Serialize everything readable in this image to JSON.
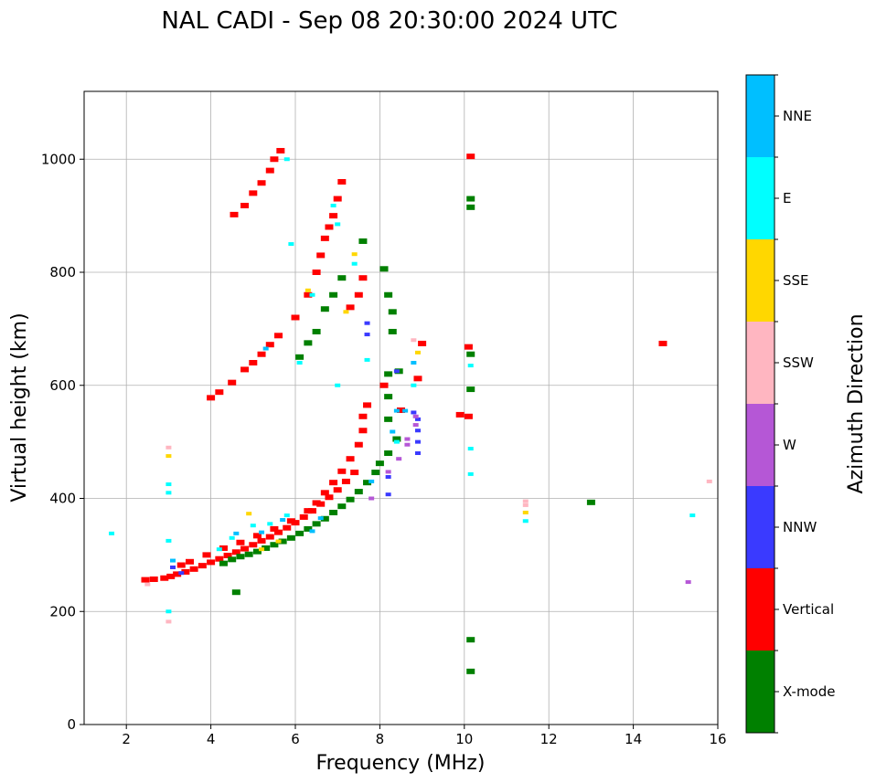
{
  "chart_data": {
    "type": "scatter",
    "title": "NAL CADI - Sep 08 20:30:00 2024 UTC",
    "xlabel": "Frequency (MHz)",
    "ylabel": "Virtual height (km)",
    "xlim": [
      1,
      16
    ],
    "ylim": [
      0,
      1120
    ],
    "xticks": [
      2,
      4,
      6,
      8,
      10,
      12,
      14,
      16
    ],
    "yticks": [
      0,
      200,
      400,
      600,
      800,
      1000
    ],
    "grid": true,
    "colorbar": {
      "label": "Azimuth Direction",
      "categories": [
        {
          "name": "X-mode",
          "color": "#008000"
        },
        {
          "name": "Vertical",
          "color": "#ff0000"
        },
        {
          "name": "NNW",
          "color": "#3a3aff"
        },
        {
          "name": "W",
          "color": "#b557d6"
        },
        {
          "name": "SSW",
          "color": "#ffb6c1"
        },
        {
          "name": "SSE",
          "color": "#ffd700"
        },
        {
          "name": "E",
          "color": "#00ffff"
        },
        {
          "name": "NNE",
          "color": "#00bfff"
        }
      ]
    },
    "series": [
      {
        "name": "Vertical",
        "points": [
          [
            2.45,
            256
          ],
          [
            2.65,
            257
          ],
          [
            2.9,
            259
          ],
          [
            3.05,
            262
          ],
          [
            3.2,
            266
          ],
          [
            3.4,
            270
          ],
          [
            3.6,
            275
          ],
          [
            3.8,
            281
          ],
          [
            4.0,
            287
          ],
          [
            4.2,
            293
          ],
          [
            4.4,
            299
          ],
          [
            4.6,
            305
          ],
          [
            4.8,
            311
          ],
          [
            5.0,
            318
          ],
          [
            5.2,
            325
          ],
          [
            5.4,
            332
          ],
          [
            5.6,
            340
          ],
          [
            5.8,
            348
          ],
          [
            6.0,
            357
          ],
          [
            6.2,
            367
          ],
          [
            6.4,
            378
          ],
          [
            6.6,
            390
          ],
          [
            6.8,
            402
          ],
          [
            7.0,
            415
          ],
          [
            7.2,
            430
          ],
          [
            7.4,
            446
          ],
          [
            3.3,
            282
          ],
          [
            3.5,
            288
          ],
          [
            3.9,
            300
          ],
          [
            4.3,
            312
          ],
          [
            4.7,
            322
          ],
          [
            5.1,
            334
          ],
          [
            5.5,
            346
          ],
          [
            5.9,
            360
          ],
          [
            6.3,
            378
          ],
          [
            6.5,
            392
          ],
          [
            6.7,
            410
          ],
          [
            6.9,
            428
          ],
          [
            7.1,
            448
          ],
          [
            7.3,
            470
          ],
          [
            7.5,
            495
          ],
          [
            7.6,
            520
          ],
          [
            7.6,
            545
          ],
          [
            7.7,
            565
          ],
          [
            8.1,
            600
          ],
          [
            8.5,
            556
          ],
          [
            8.9,
            612
          ],
          [
            9.0,
            674
          ],
          [
            9.9,
            548
          ],
          [
            10.1,
            545
          ],
          [
            10.1,
            668
          ],
          [
            10.15,
            1005
          ],
          [
            14.7,
            674
          ],
          [
            4.0,
            578
          ],
          [
            4.2,
            588
          ],
          [
            4.5,
            605
          ],
          [
            4.8,
            628
          ],
          [
            5.0,
            640
          ],
          [
            5.2,
            655
          ],
          [
            5.4,
            672
          ],
          [
            5.6,
            688
          ],
          [
            6.0,
            720
          ],
          [
            6.3,
            760
          ],
          [
            6.5,
            800
          ],
          [
            6.6,
            830
          ],
          [
            6.7,
            860
          ],
          [
            6.8,
            880
          ],
          [
            6.9,
            900
          ],
          [
            7.0,
            930
          ],
          [
            7.1,
            960
          ],
          [
            4.55,
            902
          ],
          [
            4.8,
            918
          ],
          [
            5.0,
            940
          ],
          [
            5.2,
            958
          ],
          [
            5.4,
            980
          ],
          [
            5.5,
            1000
          ],
          [
            5.65,
            1015
          ],
          [
            7.3,
            738
          ],
          [
            7.5,
            760
          ],
          [
            7.6,
            790
          ]
        ]
      },
      {
        "name": "X-mode",
        "points": [
          [
            4.3,
            285
          ],
          [
            4.5,
            292
          ],
          [
            4.7,
            297
          ],
          [
            4.9,
            301
          ],
          [
            5.1,
            306
          ],
          [
            5.3,
            312
          ],
          [
            5.5,
            318
          ],
          [
            5.7,
            324
          ],
          [
            5.9,
            330
          ],
          [
            6.1,
            338
          ],
          [
            6.3,
            346
          ],
          [
            6.5,
            355
          ],
          [
            6.7,
            364
          ],
          [
            6.9,
            375
          ],
          [
            7.1,
            386
          ],
          [
            7.3,
            398
          ],
          [
            7.5,
            412
          ],
          [
            7.7,
            428
          ],
          [
            7.9,
            446
          ],
          [
            8.0,
            462
          ],
          [
            8.2,
            480
          ],
          [
            8.4,
            505
          ],
          [
            8.2,
            540
          ],
          [
            8.2,
            580
          ],
          [
            8.2,
            620
          ],
          [
            8.45,
            625
          ],
          [
            8.3,
            695
          ],
          [
            8.3,
            730
          ],
          [
            8.2,
            760
          ],
          [
            8.1,
            806
          ],
          [
            6.1,
            650
          ],
          [
            6.3,
            675
          ],
          [
            6.5,
            695
          ],
          [
            6.7,
            735
          ],
          [
            6.9,
            760
          ],
          [
            7.1,
            790
          ],
          [
            7.6,
            855
          ],
          [
            4.6,
            234
          ],
          [
            10.15,
            930
          ],
          [
            10.15,
            915
          ],
          [
            10.15,
            655
          ],
          [
            10.15,
            593
          ],
          [
            10.15,
            150
          ],
          [
            10.15,
            94
          ],
          [
            13.0,
            393
          ]
        ]
      },
      {
        "name": "NNW",
        "points": [
          [
            8.9,
            480
          ],
          [
            8.9,
            500
          ],
          [
            8.9,
            520
          ],
          [
            8.9,
            540
          ],
          [
            8.8,
            552
          ],
          [
            8.2,
            438
          ],
          [
            8.2,
            407
          ],
          [
            8.4,
            625
          ],
          [
            7.7,
            690
          ],
          [
            7.7,
            710
          ],
          [
            3.1,
            278
          ],
          [
            3.3,
            268
          ]
        ]
      },
      {
        "name": "W",
        "points": [
          [
            8.65,
            495
          ],
          [
            8.65,
            505
          ],
          [
            8.85,
            530
          ],
          [
            8.85,
            545
          ],
          [
            8.45,
            470
          ],
          [
            15.3,
            252
          ],
          [
            7.8,
            400
          ],
          [
            8.2,
            447
          ]
        ]
      },
      {
        "name": "SSW",
        "points": [
          [
            2.5,
            248
          ],
          [
            3.0,
            182
          ],
          [
            3.0,
            490
          ],
          [
            11.45,
            395
          ],
          [
            11.45,
            388
          ],
          [
            15.8,
            430
          ],
          [
            8.8,
            680
          ]
        ]
      },
      {
        "name": "SSE",
        "points": [
          [
            3.0,
            475
          ],
          [
            4.9,
            373
          ],
          [
            11.45,
            375
          ],
          [
            7.4,
            832
          ],
          [
            8.9,
            658
          ],
          [
            6.3,
            768
          ],
          [
            5.2,
            310
          ],
          [
            5.6,
            324
          ],
          [
            7.2,
            730
          ]
        ]
      },
      {
        "name": "E",
        "points": [
          [
            3.0,
            410
          ],
          [
            3.0,
            425
          ],
          [
            3.0,
            325
          ],
          [
            3.0,
            200
          ],
          [
            4.2,
            310
          ],
          [
            4.5,
            330
          ],
          [
            5.0,
            352
          ],
          [
            5.4,
            355
          ],
          [
            5.8,
            370
          ],
          [
            6.1,
            640
          ],
          [
            6.4,
            760
          ],
          [
            6.9,
            918
          ],
          [
            7.0,
            885
          ],
          [
            7.4,
            815
          ],
          [
            7.7,
            645
          ],
          [
            8.4,
            500
          ],
          [
            8.8,
            600
          ],
          [
            10.15,
            635
          ],
          [
            10.15,
            488
          ],
          [
            10.15,
            443
          ],
          [
            11.45,
            360
          ],
          [
            15.4,
            370
          ],
          [
            5.8,
            1000
          ],
          [
            5.9,
            850
          ],
          [
            7.0,
            600
          ],
          [
            1.65,
            338
          ]
        ]
      },
      {
        "name": "NNE",
        "points": [
          [
            3.1,
            290
          ],
          [
            4.6,
            338
          ],
          [
            5.2,
            340
          ],
          [
            5.7,
            362
          ],
          [
            6.4,
            342
          ],
          [
            6.6,
            365
          ],
          [
            8.6,
            555
          ],
          [
            8.3,
            518
          ],
          [
            8.4,
            555
          ],
          [
            5.3,
            665
          ],
          [
            8.8,
            640
          ],
          [
            7.8,
            430
          ]
        ]
      }
    ]
  }
}
